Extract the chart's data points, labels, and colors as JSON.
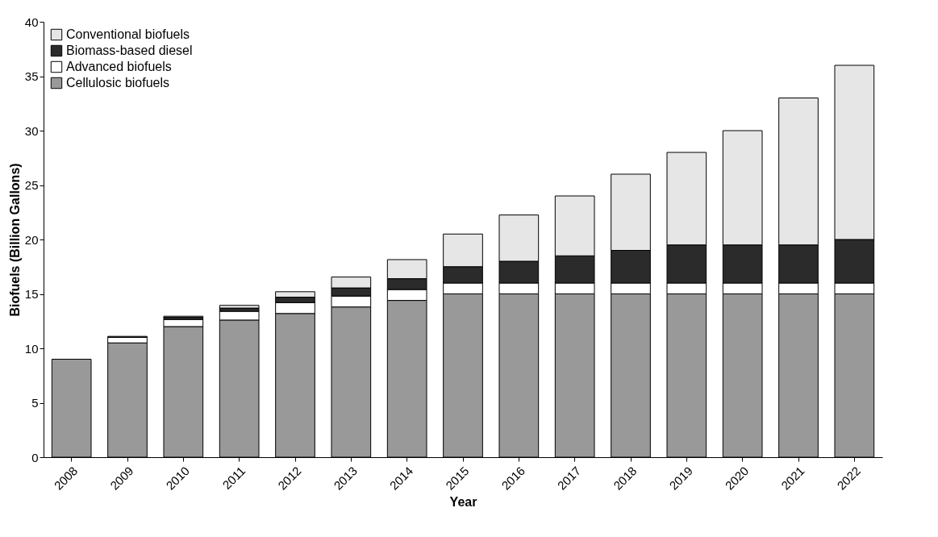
{
  "chart_data": {
    "type": "bar",
    "stacked": true,
    "xlabel": "Year",
    "ylabel": "Biofuels (Billion Gallons)",
    "categories": [
      "2008",
      "2009",
      "2010",
      "2011",
      "2012",
      "2013",
      "2014",
      "2015",
      "2016",
      "2017",
      "2018",
      "2019",
      "2020",
      "2021",
      "2022"
    ],
    "series": [
      {
        "name": "Cellulosic biofuels",
        "color": "#999999",
        "values": [
          9,
          10.5,
          12,
          12.6,
          13.2,
          13.8,
          14.4,
          15,
          15,
          15,
          15,
          15,
          15,
          15,
          15
        ]
      },
      {
        "name": "Advanced biofuels",
        "color": "#ffffff",
        "values": [
          null,
          0.5,
          0.65,
          0.8,
          1,
          1,
          1,
          1,
          1,
          1,
          1,
          1,
          1,
          1,
          1
        ]
      },
      {
        "name": "Biomass-based diesel",
        "color": "#2b2b2b",
        "values": [
          null,
          0.1,
          0.2,
          0.3,
          0.5,
          0.75,
          1,
          1.5,
          2,
          2.5,
          3,
          3.5,
          3.5,
          3.5,
          4
        ]
      },
      {
        "name": "Conventional biofuels",
        "color": "#e6e6e6",
        "values": [
          null,
          null,
          0.1,
          0.25,
          0.5,
          1,
          1.75,
          3,
          4.25,
          5.5,
          7,
          8.5,
          10.5,
          13.5,
          16
        ]
      }
    ],
    "ylim": [
      0,
      40
    ],
    "yticks": [
      0,
      5,
      10,
      15,
      20,
      25,
      30,
      35,
      40
    ],
    "grid": false,
    "legend": "top left"
  }
}
